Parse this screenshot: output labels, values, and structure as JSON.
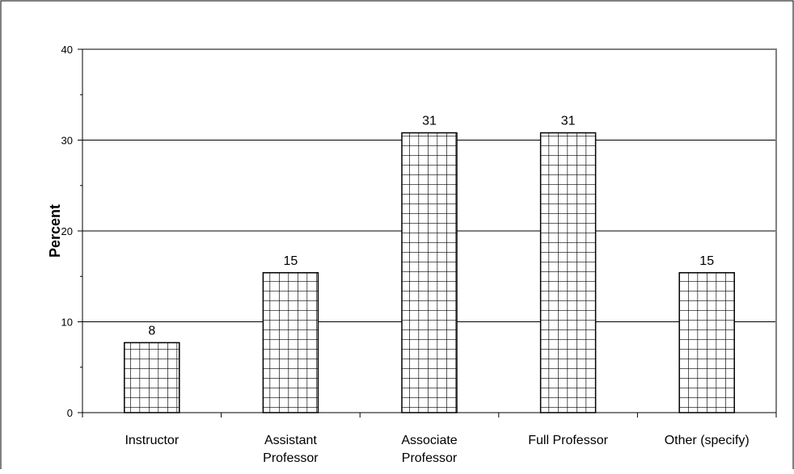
{
  "chart_data": {
    "type": "bar",
    "title": "",
    "xlabel": "",
    "ylabel": "Percent",
    "ylim": [
      0,
      40
    ],
    "yticks": [
      0,
      10,
      20,
      30,
      40
    ],
    "grid": true,
    "categories": [
      [
        "Instructor"
      ],
      [
        "Assistant",
        "Professor"
      ],
      [
        "Associate",
        "Professor"
      ],
      [
        "Full Professor"
      ],
      [
        "Other (specify)"
      ]
    ],
    "values": [
      7.7,
      15.4,
      30.8,
      30.8,
      15.4
    ],
    "data_labels": [
      "8",
      "15",
      "31",
      "31",
      "15"
    ],
    "bar_fill": "#ffffff",
    "bar_pattern": "grid",
    "bar_outline": "#000000",
    "plot_border": "#808080",
    "grid_color": "#000000",
    "outer_border": "#000000"
  }
}
